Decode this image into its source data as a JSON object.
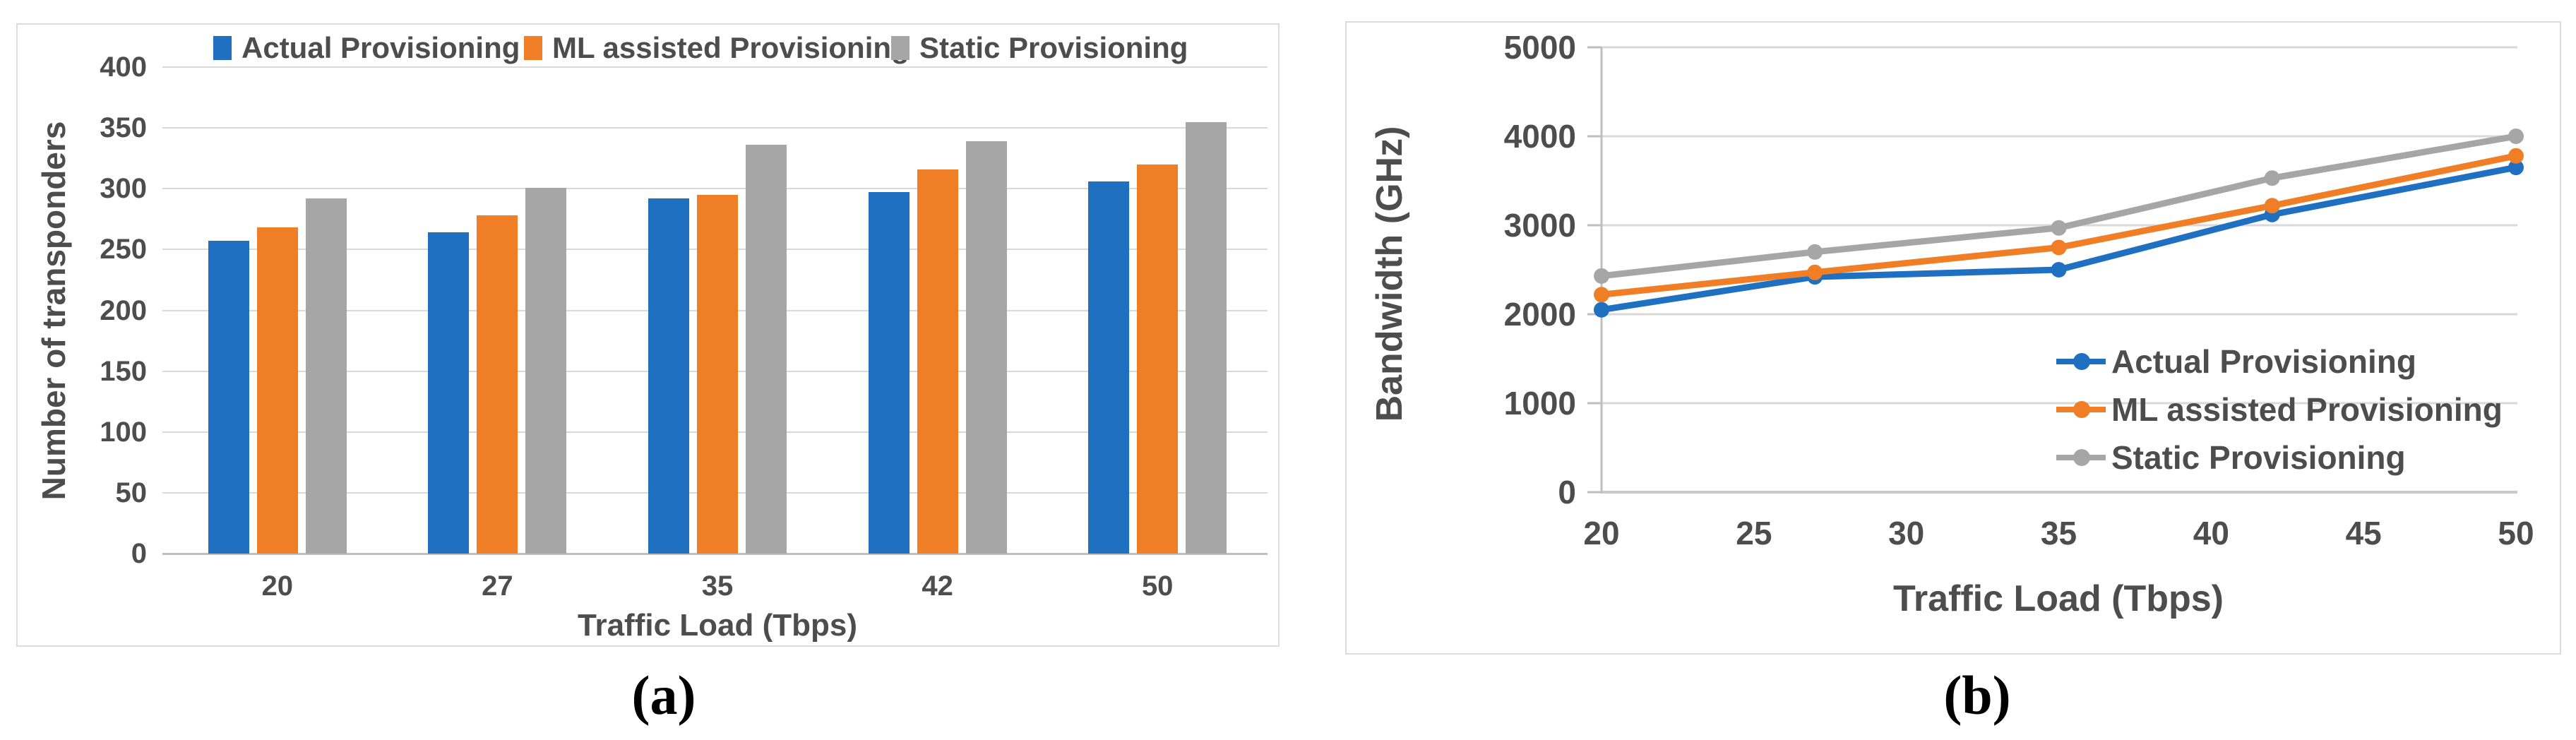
{
  "captions": {
    "a": "(a)",
    "b": "(b)"
  },
  "colors": {
    "actual": "#1f70c1",
    "ml_assisted": "#f07e26",
    "static": "#a6a6a6",
    "text": "#4d4d4d",
    "grid": "#d9d9d9",
    "axis_line": "#bfbfbf"
  },
  "chart_data": [
    {
      "type": "bar",
      "title": "",
      "xlabel": "Traffic Load (Tbps)",
      "ylabel": "Number of transponders",
      "ylim": [
        0,
        400
      ],
      "yticks": [
        0,
        50,
        100,
        150,
        200,
        250,
        300,
        350,
        400
      ],
      "categories": [
        "20",
        "27",
        "35",
        "42",
        "50"
      ],
      "grid": "horizontal",
      "legend_position": "top",
      "series": [
        {
          "name": "Actual Provisioning",
          "color": "#1f70c1",
          "values": [
            257,
            264,
            292,
            297,
            306
          ]
        },
        {
          "name": "ML assisted Provisioning",
          "color": "#f07e26",
          "values": [
            268,
            278,
            295,
            316,
            320
          ]
        },
        {
          "name": "Static Provisioning",
          "color": "#a6a6a6",
          "values": [
            292,
            301,
            336,
            339,
            355
          ]
        }
      ]
    },
    {
      "type": "line",
      "title": "",
      "xlabel": "Traffic Load (Tbps)",
      "ylabel": "Bandwidth (GHz)",
      "xlim": [
        20,
        50
      ],
      "ylim": [
        0,
        5000
      ],
      "xticks": [
        20,
        25,
        30,
        35,
        40,
        45,
        50
      ],
      "yticks": [
        0,
        1000,
        2000,
        3000,
        4000,
        5000
      ],
      "x": [
        20,
        27,
        35,
        42,
        50
      ],
      "grid": "horizontal",
      "legend_position": "inside-bottom-right",
      "marker": "circle",
      "series": [
        {
          "name": "Actual Provisioning",
          "color": "#1f70c1",
          "values": [
            2050,
            2420,
            2500,
            3120,
            3650
          ]
        },
        {
          "name": "ML assisted Provisioning",
          "color": "#f07e26",
          "values": [
            2220,
            2470,
            2750,
            3220,
            3780
          ]
        },
        {
          "name": "Static Provisioning",
          "color": "#a6a6a6",
          "values": [
            2430,
            2700,
            2970,
            3530,
            4000
          ]
        }
      ]
    }
  ]
}
